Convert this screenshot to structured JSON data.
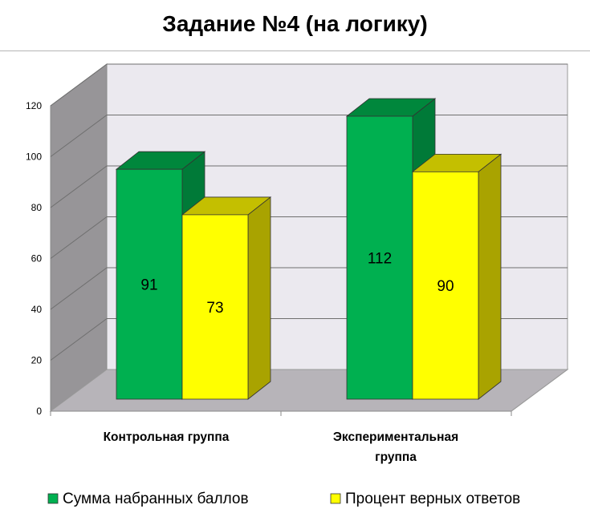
{
  "chart_data": {
    "type": "bar",
    "title": "Задание №4 (на логику)",
    "categories": [
      "Контрольная группа",
      "Экспериментальная группа"
    ],
    "category_lines": [
      [
        "Контрольная группа"
      ],
      [
        "Экспериментальная",
        "группа"
      ]
    ],
    "series": [
      {
        "name": "Сумма набранных баллов",
        "values": [
          91,
          112
        ],
        "color": "#00b050"
      },
      {
        "name": "Процент верных ответов",
        "values": [
          73,
          90
        ],
        "color": "#ffff00"
      }
    ],
    "ylim": [
      0,
      120
    ],
    "yticks": [
      0,
      20,
      40,
      60,
      80,
      100,
      120
    ],
    "grid": true,
    "style": "3d",
    "legend": "bottom"
  }
}
